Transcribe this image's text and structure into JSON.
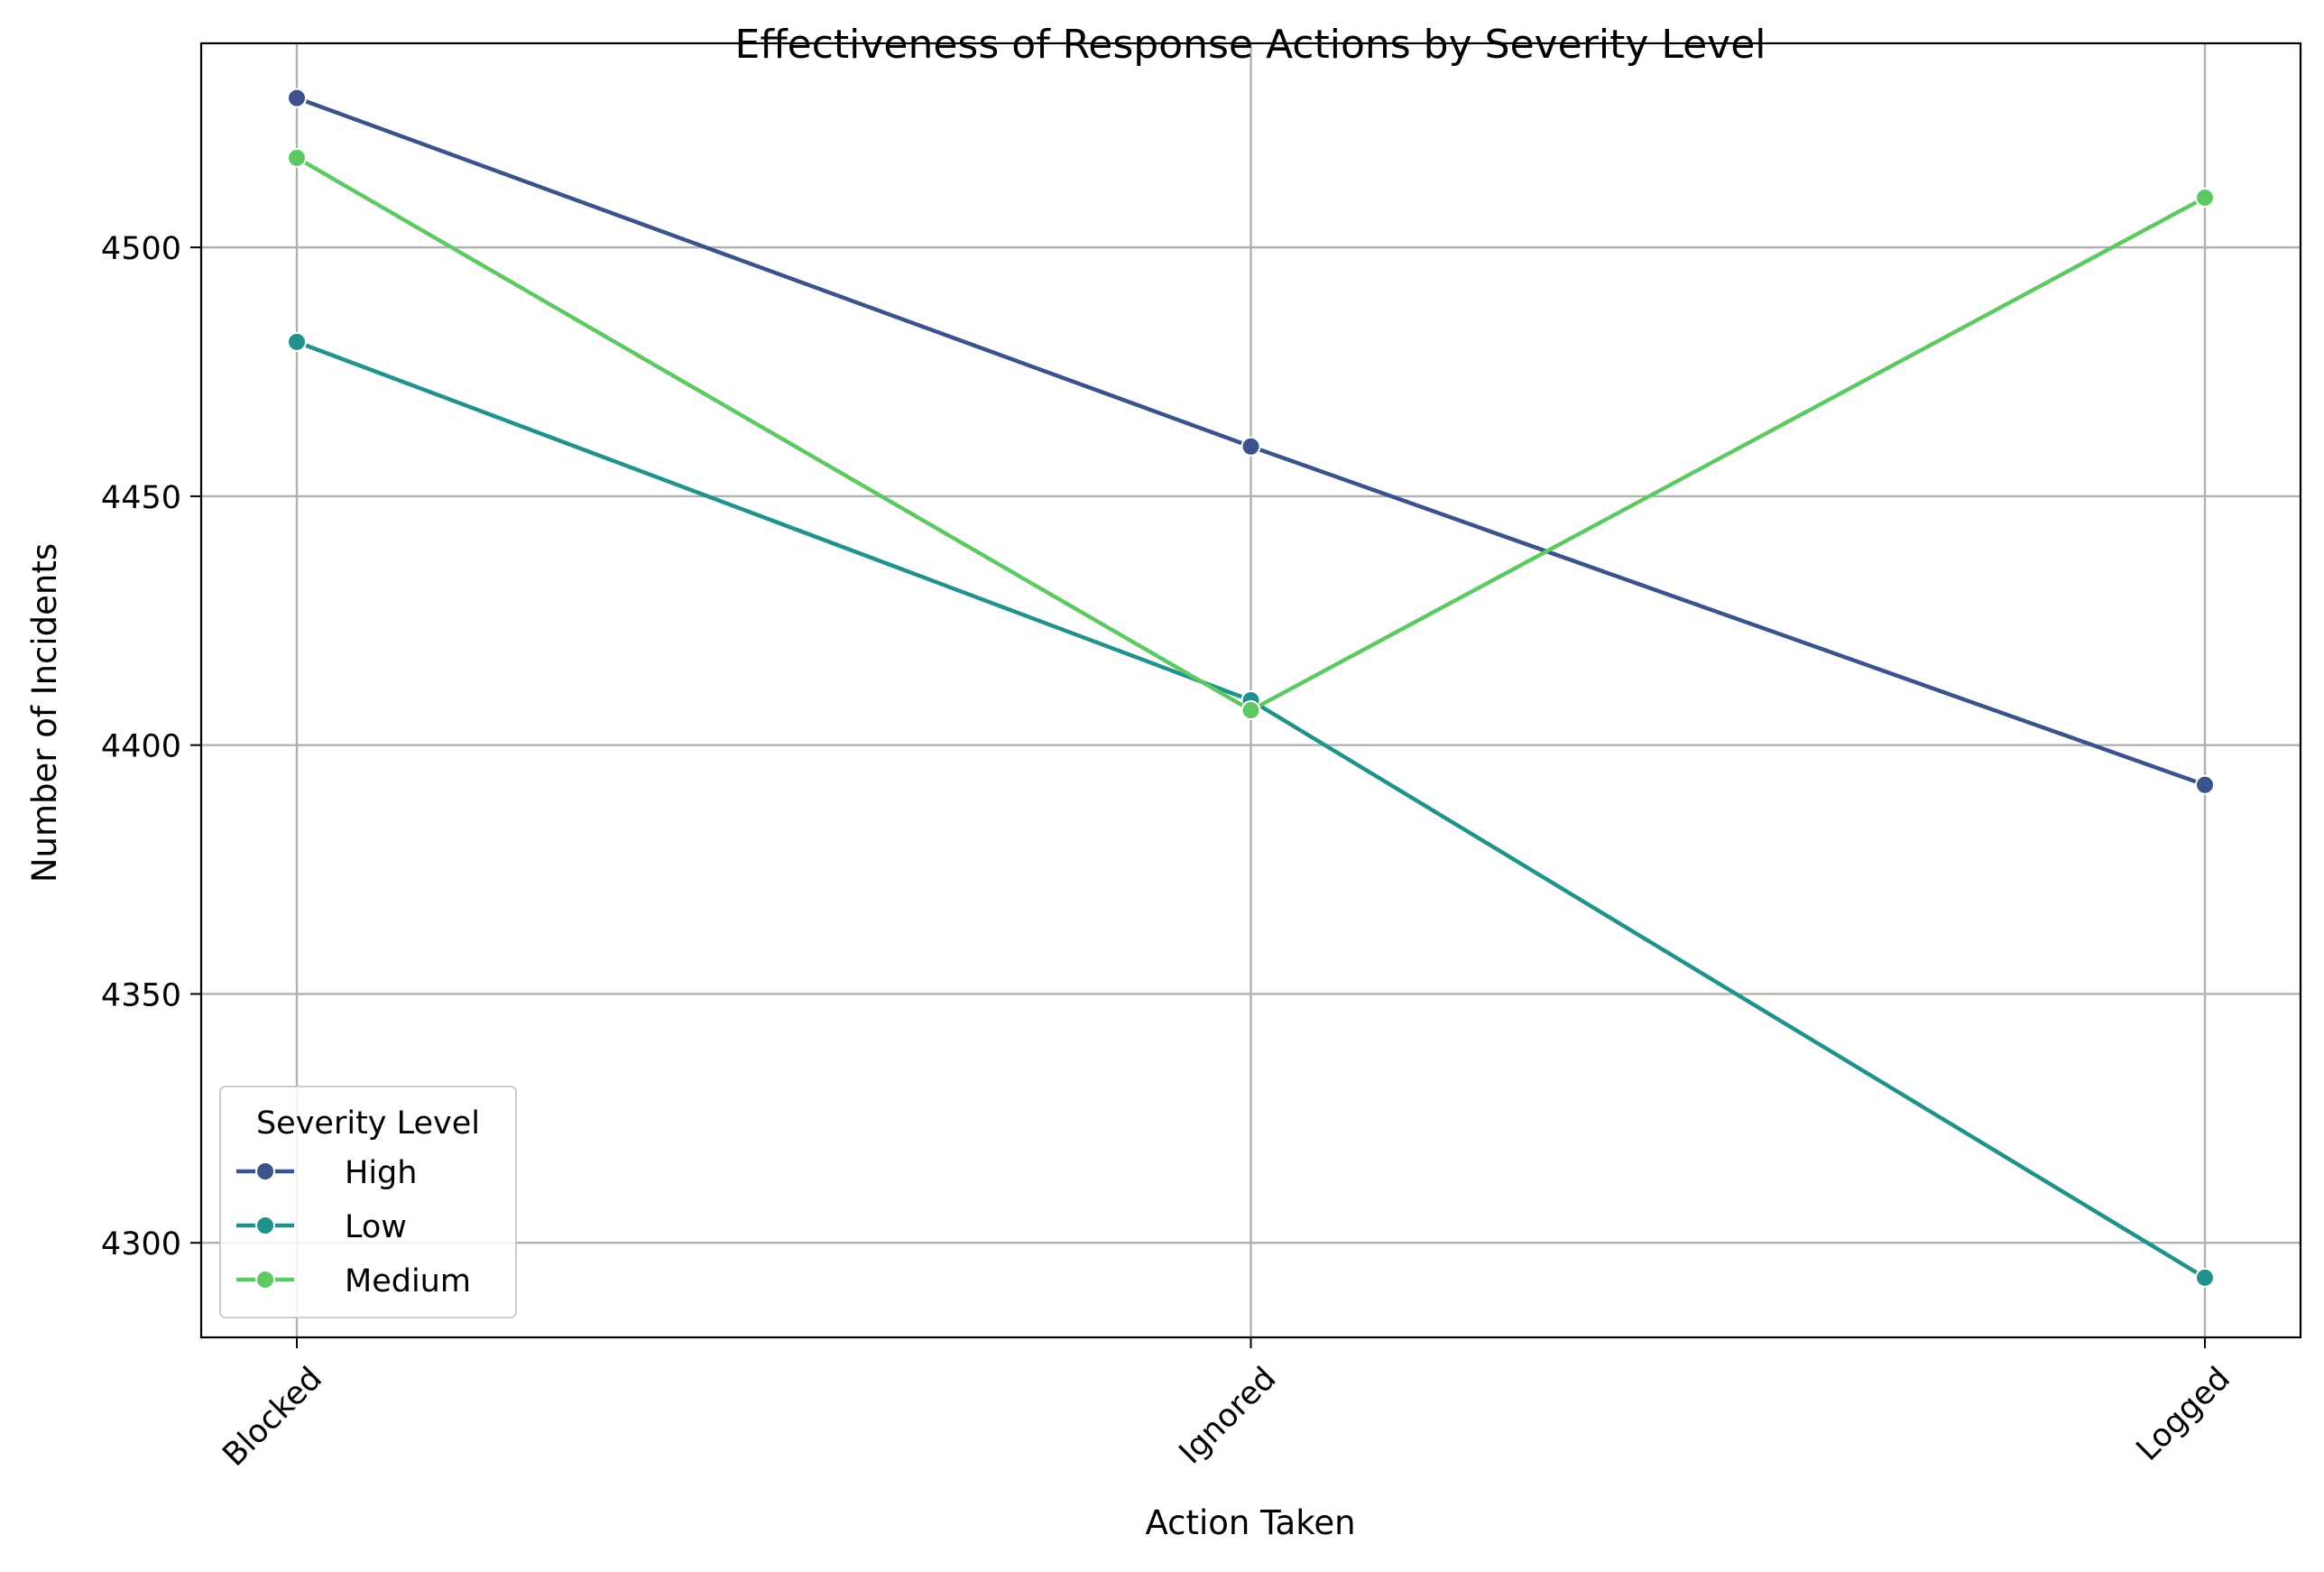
{
  "chart_data": {
    "type": "line",
    "title": "Effectiveness of Response Actions by Severity Level",
    "xlabel": "Action Taken",
    "ylabel": "Number of Incidents",
    "categories": [
      "Blocked",
      "Ignored",
      "Logged"
    ],
    "ylim": [
      4281,
      4541
    ],
    "yticks": [
      4300,
      4350,
      4400,
      4450,
      4500
    ],
    "grid": true,
    "legend": {
      "title": "Severity Level",
      "placement": "lower-left"
    },
    "series": [
      {
        "name": "High",
        "color": "#3b528b",
        "values": [
          4530,
          4460,
          4392
        ]
      },
      {
        "name": "Low",
        "color": "#21918c",
        "values": [
          4481,
          4409,
          4293
        ]
      },
      {
        "name": "Medium",
        "color": "#5ec962",
        "values": [
          4518,
          4407,
          4510
        ]
      }
    ]
  }
}
